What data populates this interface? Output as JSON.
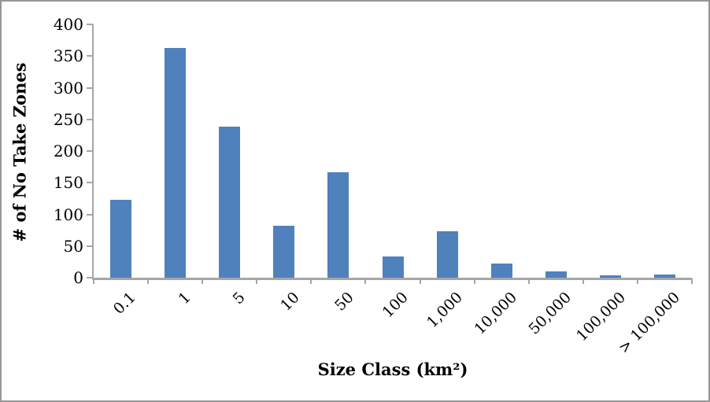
{
  "chart_data": {
    "type": "bar",
    "title": "",
    "categories": [
      "0.1",
      "1",
      "5",
      "10",
      "50",
      "100",
      "1,000",
      "10,000",
      "50,000",
      "100,000",
      "> 100,000"
    ],
    "values": [
      123,
      363,
      239,
      82,
      166,
      33,
      73,
      22,
      10,
      4,
      5
    ],
    "series_name": "# of No Take Zones",
    "xlabel": "Size Class (km²)",
    "ylabel": "# of No Take Zones",
    "ylim": [
      0,
      400
    ],
    "ytick_step": 50,
    "yticks": [
      400,
      350,
      300,
      250,
      200,
      150,
      100,
      50,
      0
    ],
    "grid": false,
    "legend_position": "none",
    "bar_color": "#4F81BD",
    "axis_color": "#A6A6A6",
    "frame_border_color": "#969696",
    "text_color": "#000000",
    "background_color": "#FFFFFF"
  }
}
